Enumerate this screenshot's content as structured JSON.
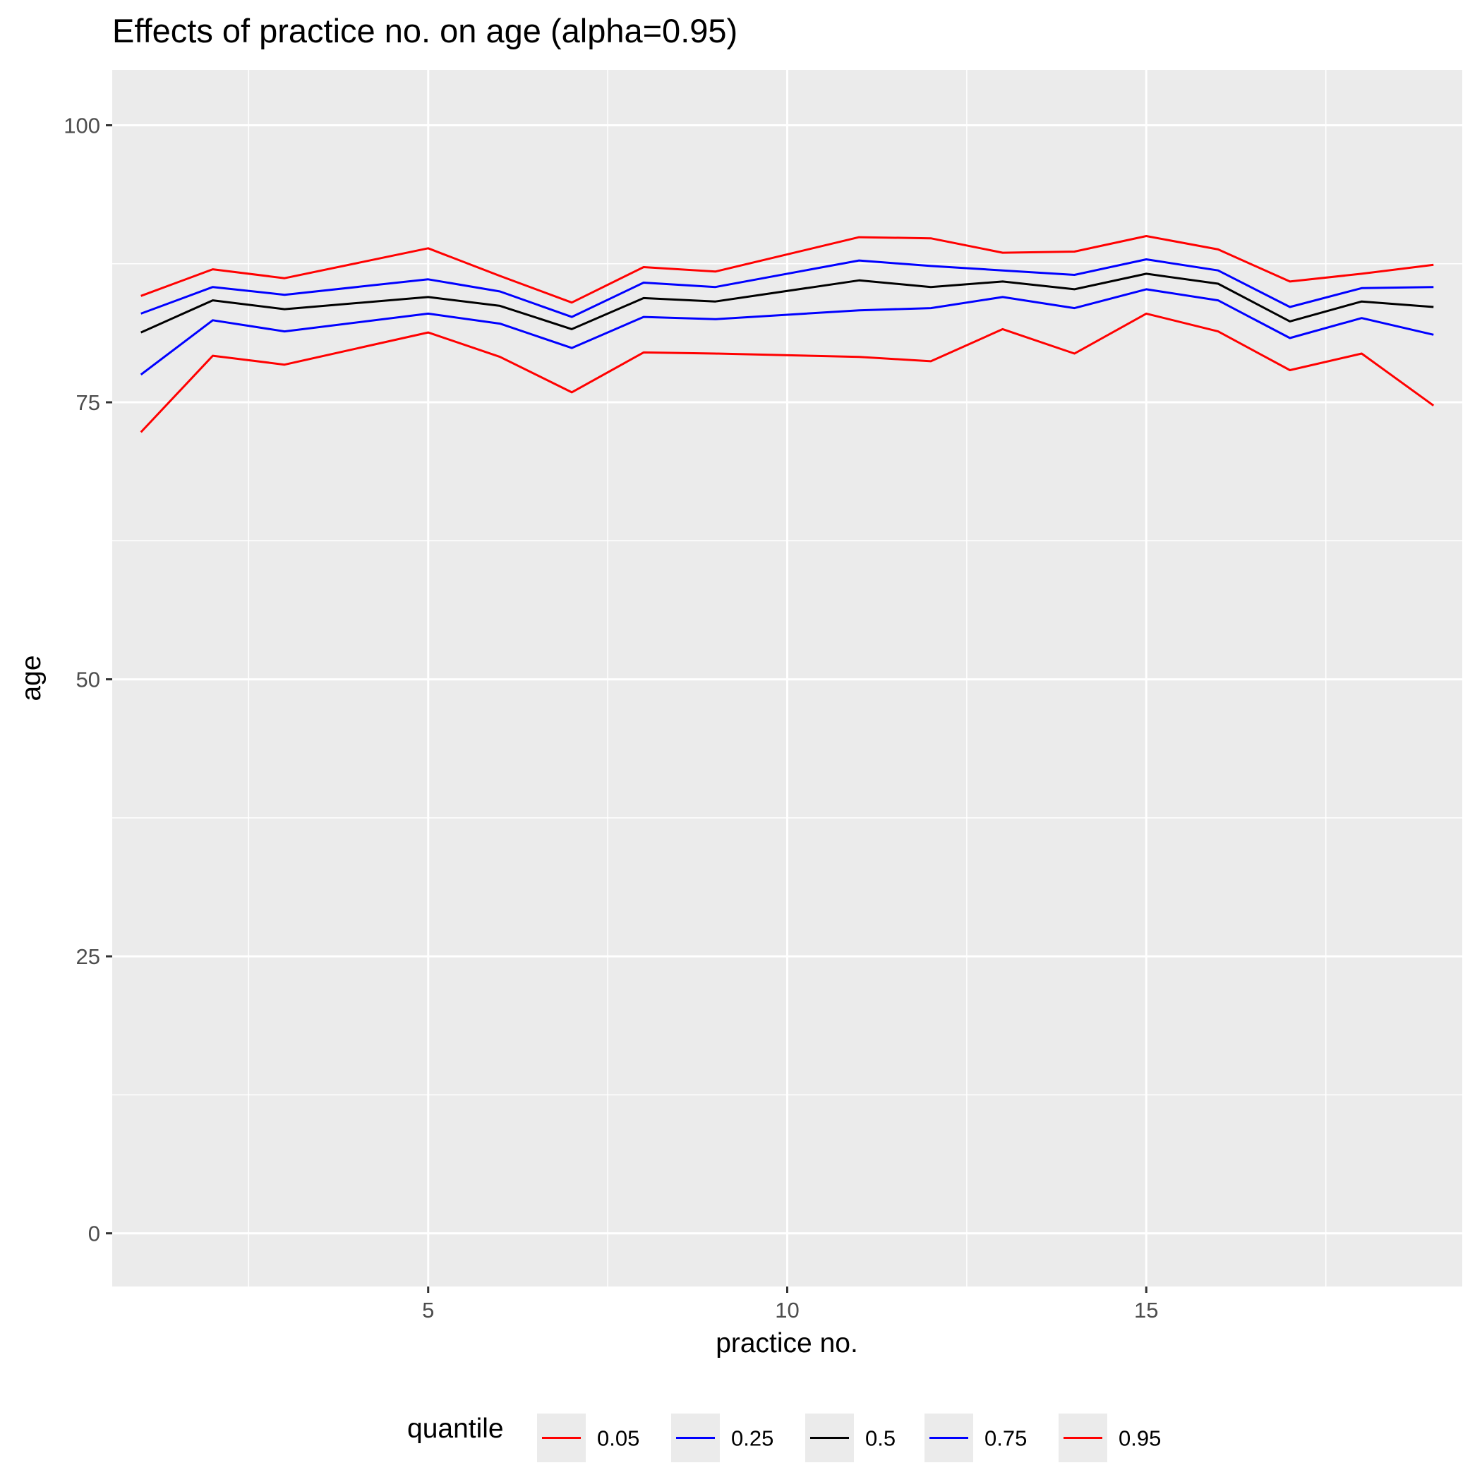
{
  "chart_data": {
    "type": "line",
    "title": "Effects of practice no. on age (alpha=0.95)",
    "xlabel": "practice no.",
    "ylabel": "age",
    "xlim": [
      0.6,
      19.4
    ],
    "ylim": [
      -4.8,
      105
    ],
    "x_ticks": [
      5,
      10,
      15
    ],
    "x_minor": [
      2.5,
      7.5,
      12.5,
      17.5
    ],
    "y_ticks": [
      0,
      25,
      50,
      75,
      100
    ],
    "y_minor": [
      12.5,
      37.5,
      62.5,
      87.5
    ],
    "grid": true,
    "legend_position": "bottom",
    "legend_title": "quantile",
    "x": [
      1,
      2,
      3,
      5,
      6,
      7,
      8,
      9,
      11,
      12,
      13,
      14,
      15,
      16,
      17,
      18,
      19
    ],
    "series": [
      {
        "name": "0.05",
        "color": "#ff0000",
        "values": [
          72.3,
          79.2,
          78.4,
          81.3,
          79.1,
          75.9,
          79.5,
          79.4,
          79.1,
          78.7,
          81.6,
          79.4,
          83.0,
          81.4,
          77.9,
          79.4,
          74.7
        ]
      },
      {
        "name": "0.25",
        "color": "#0000ff",
        "values": [
          77.5,
          82.4,
          81.4,
          83.0,
          82.1,
          79.9,
          82.7,
          82.5,
          83.3,
          83.5,
          84.5,
          83.5,
          85.2,
          84.2,
          80.8,
          82.6,
          81.1
        ]
      },
      {
        "name": "0.5",
        "color": "#000000",
        "values": [
          81.3,
          84.2,
          83.4,
          84.5,
          83.7,
          81.6,
          84.4,
          84.1,
          86.0,
          85.4,
          85.9,
          85.2,
          86.6,
          85.7,
          82.3,
          84.1,
          83.6
        ]
      },
      {
        "name": "0.75",
        "color": "#0000ff",
        "values": [
          83.0,
          85.4,
          84.7,
          86.1,
          85.0,
          82.7,
          85.8,
          85.4,
          87.8,
          87.3,
          86.9,
          86.5,
          87.9,
          86.9,
          83.6,
          85.3,
          85.4
        ]
      },
      {
        "name": "0.95",
        "color": "#ff0000",
        "values": [
          84.6,
          87.0,
          86.2,
          88.9,
          86.4,
          84.0,
          87.2,
          86.8,
          89.9,
          89.8,
          88.5,
          88.6,
          90.0,
          88.8,
          85.9,
          86.6,
          87.4
        ]
      }
    ]
  }
}
